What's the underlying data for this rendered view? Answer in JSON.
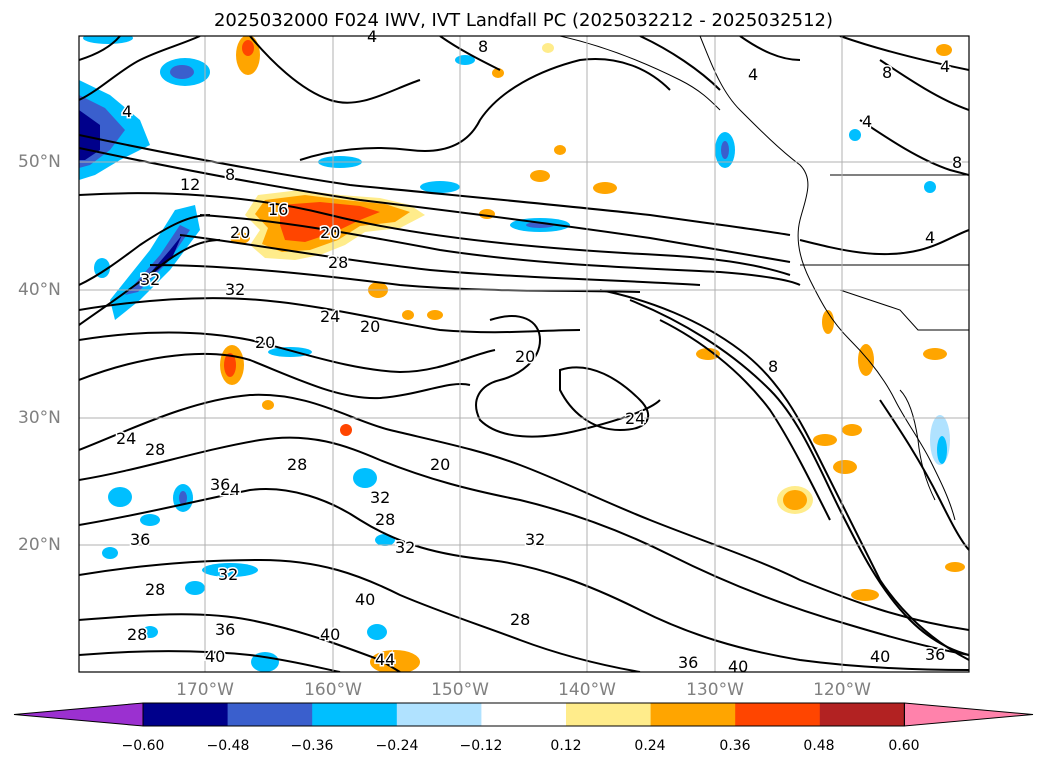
{
  "title": "2025032000 F024 IWV, IVT Landfall PC (2025032212 - 2025032512)",
  "lat_labels": [
    "50°N",
    "40°N",
    "30°N",
    "20°N"
  ],
  "lon_labels": [
    "170°W",
    "160°W",
    "150°W",
    "140°W",
    "130°W",
    "120°W"
  ],
  "colorbar": {
    "colors": [
      "#9b30d0",
      "#00008b",
      "#3a5fcd",
      "#00bfff",
      "#b0e2ff",
      "#ffffff",
      "#ffec8b",
      "#ffa500",
      "#ff4500",
      "#b22222",
      "#ff82ab"
    ],
    "tick_labels": [
      "−0.60",
      "−0.48",
      "−0.36",
      "−0.24",
      "−0.12",
      "0.12",
      "0.24",
      "0.36",
      "0.48",
      "0.60"
    ]
  },
  "contour_labels": [
    "4",
    "4",
    "4",
    "4",
    "4",
    "4",
    "8",
    "8",
    "8",
    "8",
    "8",
    "12",
    "16",
    "20",
    "20",
    "20",
    "20",
    "20",
    "20",
    "24",
    "24",
    "24",
    "24",
    "28",
    "28",
    "28",
    "28",
    "28",
    "28",
    "28",
    "32",
    "32",
    "32",
    "32",
    "32",
    "32",
    "36",
    "36",
    "36",
    "36",
    "36",
    "40",
    "40",
    "40",
    "40",
    "40",
    "44"
  ]
}
